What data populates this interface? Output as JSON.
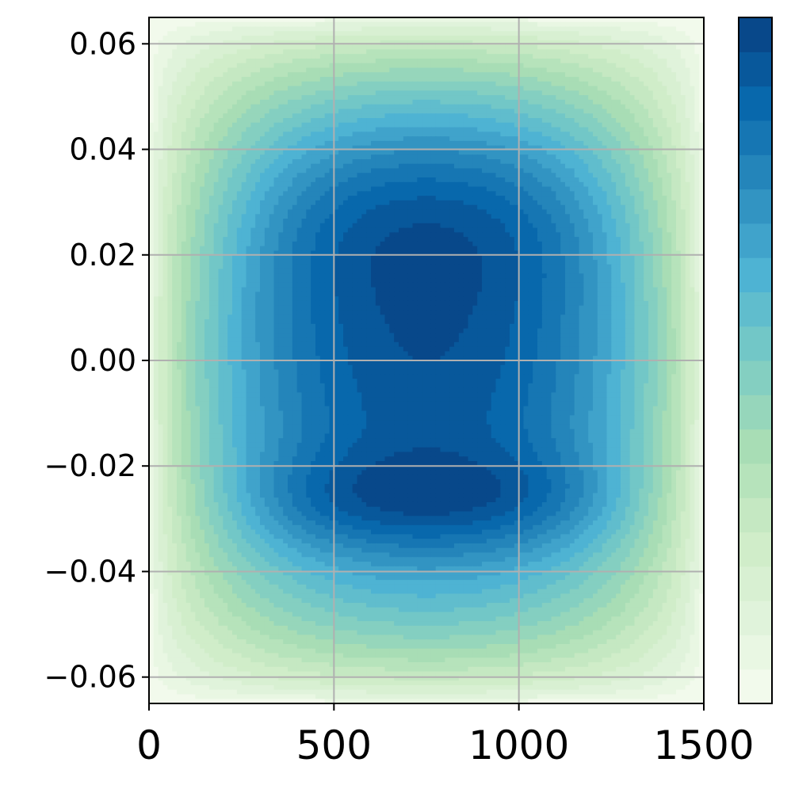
{
  "chart_data": {
    "type": "heatmap",
    "title": "",
    "xlabel": "",
    "ylabel": "",
    "xlim": [
      0,
      1500
    ],
    "ylim": [
      -0.065,
      0.065
    ],
    "x_ticks": [
      0,
      500,
      1000,
      1500
    ],
    "x_tick_labels": [
      "0",
      "500",
      "1000",
      "1500"
    ],
    "y_ticks": [
      -0.06,
      -0.04,
      -0.02,
      0.0,
      0.02,
      0.04,
      0.06
    ],
    "y_tick_labels": [
      "−0.06",
      "−0.04",
      "−0.02",
      "0.00",
      "0.02",
      "0.04",
      "0.06"
    ],
    "grid": true,
    "colormap": "GnBu",
    "contour_levels": 20,
    "colorbar": {
      "location": "right",
      "tick_labels": []
    },
    "field_features": {
      "upper_maximum": {
        "x_range": [
          250,
          1300
        ],
        "y_range": [
          0.014,
          0.046
        ]
      },
      "lower_maximum": {
        "x_range": [
          260,
          1290
        ],
        "y_range": [
          -0.035,
          -0.019
        ]
      },
      "center_saddle_y": 0.0,
      "boundary_value": "minimum"
    },
    "colors": [
      "#f7fcf0",
      "#e0f3db",
      "#ccebc5",
      "#a8ddb5",
      "#7bccc4",
      "#4eb3d3",
      "#2b8cbe",
      "#0868ac",
      "#084081"
    ]
  }
}
